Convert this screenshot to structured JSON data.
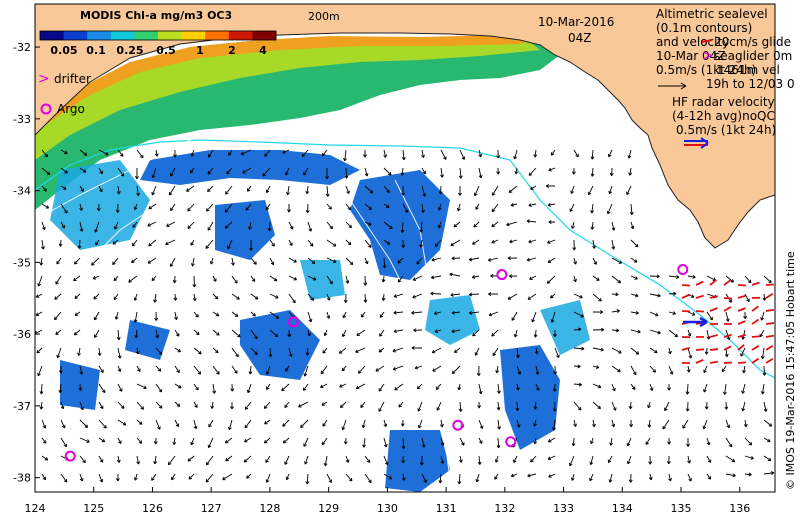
{
  "title": "MODIS Chl-a mg/m3 OC3",
  "colorbar_ticks": [
    "0.05",
    "0.1",
    "0.25",
    "0.5",
    "1",
    "2",
    "4"
  ],
  "colorbar_colors": [
    "#08088a",
    "#0b3fd0",
    "#1a8ce8",
    "#10c8d8",
    "#30d070",
    "#b8e020",
    "#ffd000",
    "#ff7000",
    "#d01800",
    "#800000"
  ],
  "isobath_label": "200m",
  "date": "10-Mar-2016",
  "time": "04Z",
  "legend_left": {
    "drifter": "drifter",
    "argo": "Argo"
  },
  "legend_right": {
    "line1": "Altimetric sealevel",
    "line2": "(0.1m contours)",
    "line3": "and velocity",
    "glider_top": "20cm/s glide",
    "glider_date": "10-Mar 04Z",
    "glider_label": "seaglider 0m",
    "vel_scale": "0.5m/s (1kt 24h)",
    "vel_label": "1461m vel",
    "vel_range": "19h to 12/03 0",
    "hf1": "HF radar velocity",
    "hf2": "(4-12h avg)noQC",
    "hf3": "0.5m/s (1kt 24h)"
  },
  "credit": "© IMOS 19-Mar-2016 15:47:05 Hobart time",
  "colors": {
    "land": "#f8c898",
    "coast": "#202020",
    "shelf": "#20d8e8",
    "drifter": "#e000e0",
    "argo": "#e000e0",
    "hf": "#e01010",
    "hf_scale": "#2020e0"
  },
  "chart_data": {
    "type": "map",
    "x_ticks": [
      "124",
      "125",
      "126",
      "127",
      "128",
      "129",
      "130",
      "131",
      "132",
      "133",
      "134",
      "135",
      "136"
    ],
    "y_ticks": [
      "-32",
      "-33",
      "-34",
      "-35",
      "-36",
      "-37",
      "-38"
    ],
    "xlim": [
      124,
      136.6
    ],
    "ylim": [
      -38.2,
      -31.4
    ],
    "argo_floats": [
      [
        128.4,
        -35.83
      ],
      [
        131.2,
        -37.27
      ],
      [
        131.95,
        -35.17
      ],
      [
        132.1,
        -37.5
      ],
      [
        124.6,
        -37.7
      ],
      [
        135.03,
        -35.1
      ]
    ]
  }
}
